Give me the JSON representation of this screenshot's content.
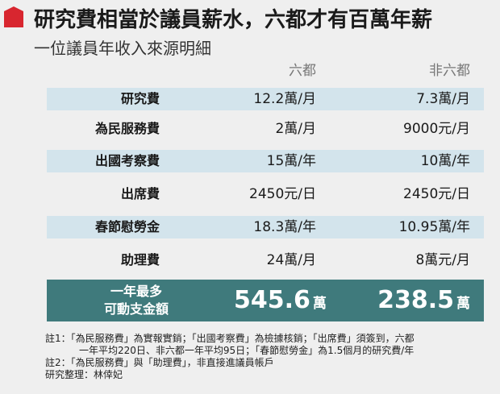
{
  "header": {
    "title": "研究費相當於議員薪水，六都才有百萬年薪",
    "subtitle": "一位議員年收入來源明細",
    "accent_color": "#d8262f"
  },
  "columns": {
    "col1": "六都",
    "col2": "非六都"
  },
  "rows": [
    {
      "label": "研究費",
      "six": "12.2萬/月",
      "non_six": "7.3萬/月"
    },
    {
      "label": "為民服務費",
      "six": "2萬/月",
      "non_six": "9000元/月"
    },
    {
      "label": "出國考察費",
      "six": "15萬/年",
      "non_six": "10萬/年"
    },
    {
      "label": "出席費",
      "six": "2450元/日",
      "non_six": "2450元/日"
    },
    {
      "label": "春節慰勞金",
      "six": "18.3萬/年",
      "non_six": "10.95萬/年"
    },
    {
      "label": "助理費",
      "six": "24萬/月",
      "non_six": "8萬元/月"
    }
  ],
  "total": {
    "label_line1": "一年最多",
    "label_line2": "可動支金額",
    "six_value": "545.6",
    "non_six_value": "238.5",
    "unit": "萬",
    "bg_color": "#3f7a7c"
  },
  "notes": {
    "note1_line1": "註1：「為民服務費」為實報實銷；「出國考察費」為檢據核銷；「出席費」須簽到，六都",
    "note1_line2": "一年平均220日、非六都一年平均95日；「春節慰勞金」為1.5個月的研究費/年",
    "note2": "註2：「為民服務費」與「助理費」，非直接進議員帳戶",
    "credit": "研究整理：林倖妃"
  }
}
